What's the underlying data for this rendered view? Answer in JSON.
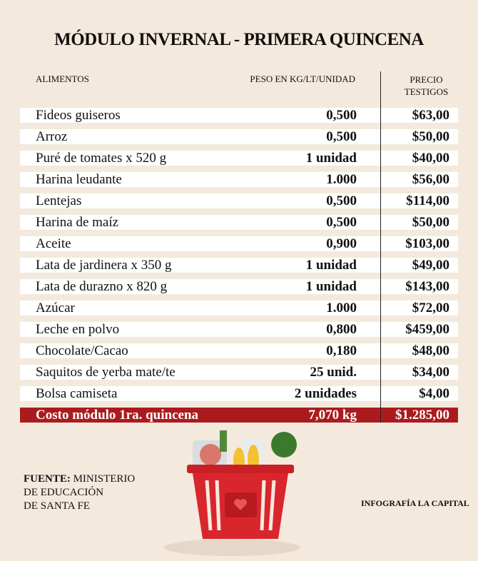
{
  "header": {
    "title": "MÓDULO INVERNAL - PRIMERA QUINCENA"
  },
  "table": {
    "columns": [
      "ALIMENTOS",
      "PESO EN KG/LT/UNIDAD",
      [
        "PRECIO",
        "TESTIGOS"
      ]
    ],
    "rows": [
      [
        "Fideos guiseros",
        "0,500",
        "$63,00"
      ],
      [
        "Arroz",
        "0,500",
        "$50,00"
      ],
      [
        "Puré de tomates x 520 g",
        "1 unidad",
        "$40,00"
      ],
      [
        "Harina leudante",
        "1.000",
        "$56,00"
      ],
      [
        "Lentejas",
        "0,500",
        "$114,00"
      ],
      [
        "Harina de maíz",
        "0,500",
        "$50,00"
      ],
      [
        "Aceite",
        "0,900",
        "$103,00"
      ],
      [
        "Lata de jardinera x 350 g",
        "1 unidad",
        "$49,00"
      ],
      [
        "Lata de durazno x 820 g",
        "1 unidad",
        "$143,00"
      ],
      [
        "Azúcar",
        "1.000",
        "$72,00"
      ],
      [
        "Leche en polvo",
        "0,800",
        "$459,00"
      ],
      [
        "Chocolate/Cacao",
        "0,180",
        "$48,00"
      ],
      [
        "Saquitos de yerba mate/te",
        "25 unid.",
        "$34,00"
      ],
      [
        "Bolsa camiseta",
        "2 unidades",
        "$4,00"
      ]
    ],
    "total": [
      "Costo módulo 1ra. quincena",
      "7,070 kg",
      "$1.285,00"
    ]
  },
  "footer": {
    "source_label": "FUENTE:",
    "source": [
      "MINISTERIO",
      "DE EDUCACIÓN",
      "DE SANTA FE"
    ],
    "credit": "INFOGRAFÍA LA CAPITAL"
  }
}
